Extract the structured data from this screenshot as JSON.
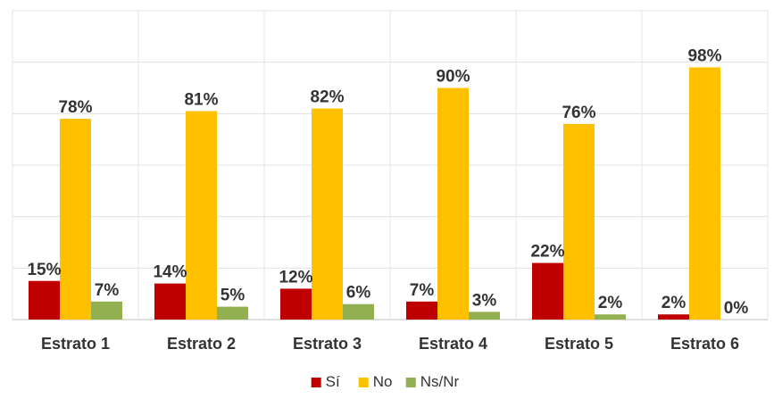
{
  "chart_data": {
    "type": "bar",
    "categories": [
      "Estrato 1",
      "Estrato 2",
      "Estrato 3",
      "Estrato 4",
      "Estrato 5",
      "Estrato 6"
    ],
    "series": [
      {
        "name": "Sí",
        "color": "#c00000",
        "values": [
          15,
          14,
          12,
          7,
          22,
          2
        ],
        "labels": [
          "15%",
          "14%",
          "12%",
          "7%",
          "22%",
          "2%"
        ]
      },
      {
        "name": "No",
        "color": "#ffc000",
        "values": [
          78,
          81,
          82,
          90,
          76,
          98
        ],
        "labels": [
          "78%",
          "81%",
          "82%",
          "90%",
          "76%",
          "98%"
        ]
      },
      {
        "name": "Ns/Nr",
        "color": "#92b050",
        "values": [
          7,
          5,
          6,
          3,
          2,
          0
        ],
        "labels": [
          "7%",
          "5%",
          "6%",
          "3%",
          "2%",
          "0%"
        ]
      }
    ],
    "ylim": [
      0,
      120
    ],
    "grid": true,
    "legend_position": "bottom",
    "title": "",
    "xlabel": "",
    "ylabel": ""
  }
}
